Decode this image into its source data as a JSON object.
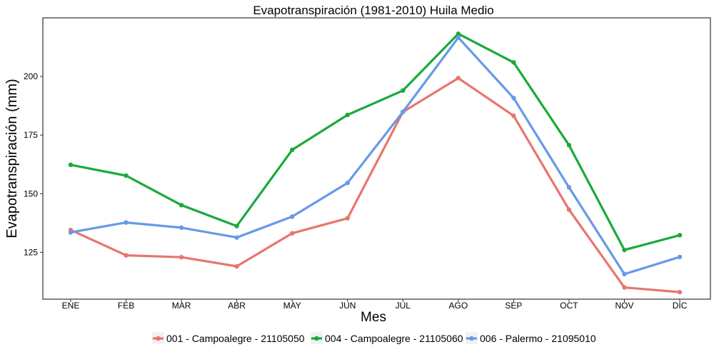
{
  "chart_data": {
    "type": "line",
    "title": "Evapotranspiración (1981-2010)  Huila Medio",
    "xlabel": "Mes",
    "ylabel": "Evapotranspiración  (mm)",
    "categories": [
      "ENE",
      "FEB",
      "MAR",
      "ABR",
      "MAY",
      "JUN",
      "JUL",
      "AGO",
      "SEP",
      "OCT",
      "NOV",
      "DIC"
    ],
    "yticks": [
      125,
      150,
      175,
      200
    ],
    "ylim": [
      105,
      225
    ],
    "grid": false,
    "legend_position": "bottom",
    "series": [
      {
        "name": "001 - Campoalegre - 21105050",
        "color": "#E8756E",
        "values": [
          134.5,
          123.7,
          122.9,
          119.0,
          133.1,
          139.5,
          184.9,
          199.3,
          183.2,
          143.2,
          110.0,
          108.0
        ]
      },
      {
        "name": "004 - Campoalegre - 21105060",
        "color": "#1AAA3B",
        "values": [
          162.3,
          157.7,
          145.1,
          136.2,
          168.7,
          183.6,
          194.0,
          218.2,
          206.0,
          170.7,
          126.0,
          132.3
        ]
      },
      {
        "name": "006 - Palermo - 21095010",
        "color": "#6699E8",
        "values": [
          133.5,
          137.7,
          135.5,
          131.3,
          140.2,
          154.6,
          184.9,
          216.6,
          190.8,
          152.7,
          115.7,
          123.0
        ]
      }
    ]
  }
}
